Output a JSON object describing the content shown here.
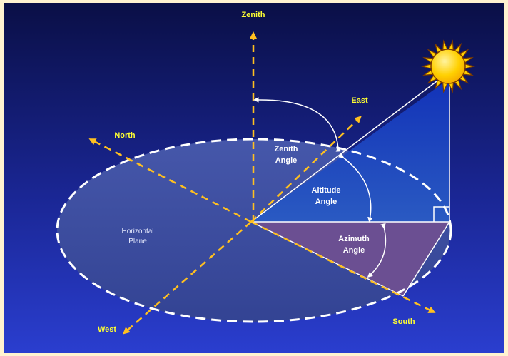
{
  "directions": {
    "zenith": "Zenith",
    "east": "East",
    "north": "North",
    "west": "West",
    "south": "South"
  },
  "angles": {
    "zenith_line1": "Zenith",
    "zenith_line2": "Angle",
    "altitude_line1": "Altitude",
    "altitude_line2": "Angle",
    "azimuth_line1": "Azimuth",
    "azimuth_line2": "Angle"
  },
  "plane": {
    "line1": "Horizontal",
    "line2": "Plane"
  },
  "colors": {
    "background_top": "#0a0f46",
    "background_bottom": "#2a3ecf",
    "frame": "#fff3d0",
    "axis": "#ffc020",
    "label": "#ffff33",
    "sun": "#ffd000",
    "azimuth_fill": "#6b4f92",
    "altitude_fill": "#1e48b8"
  },
  "icons": {
    "sun": "sun-icon"
  }
}
